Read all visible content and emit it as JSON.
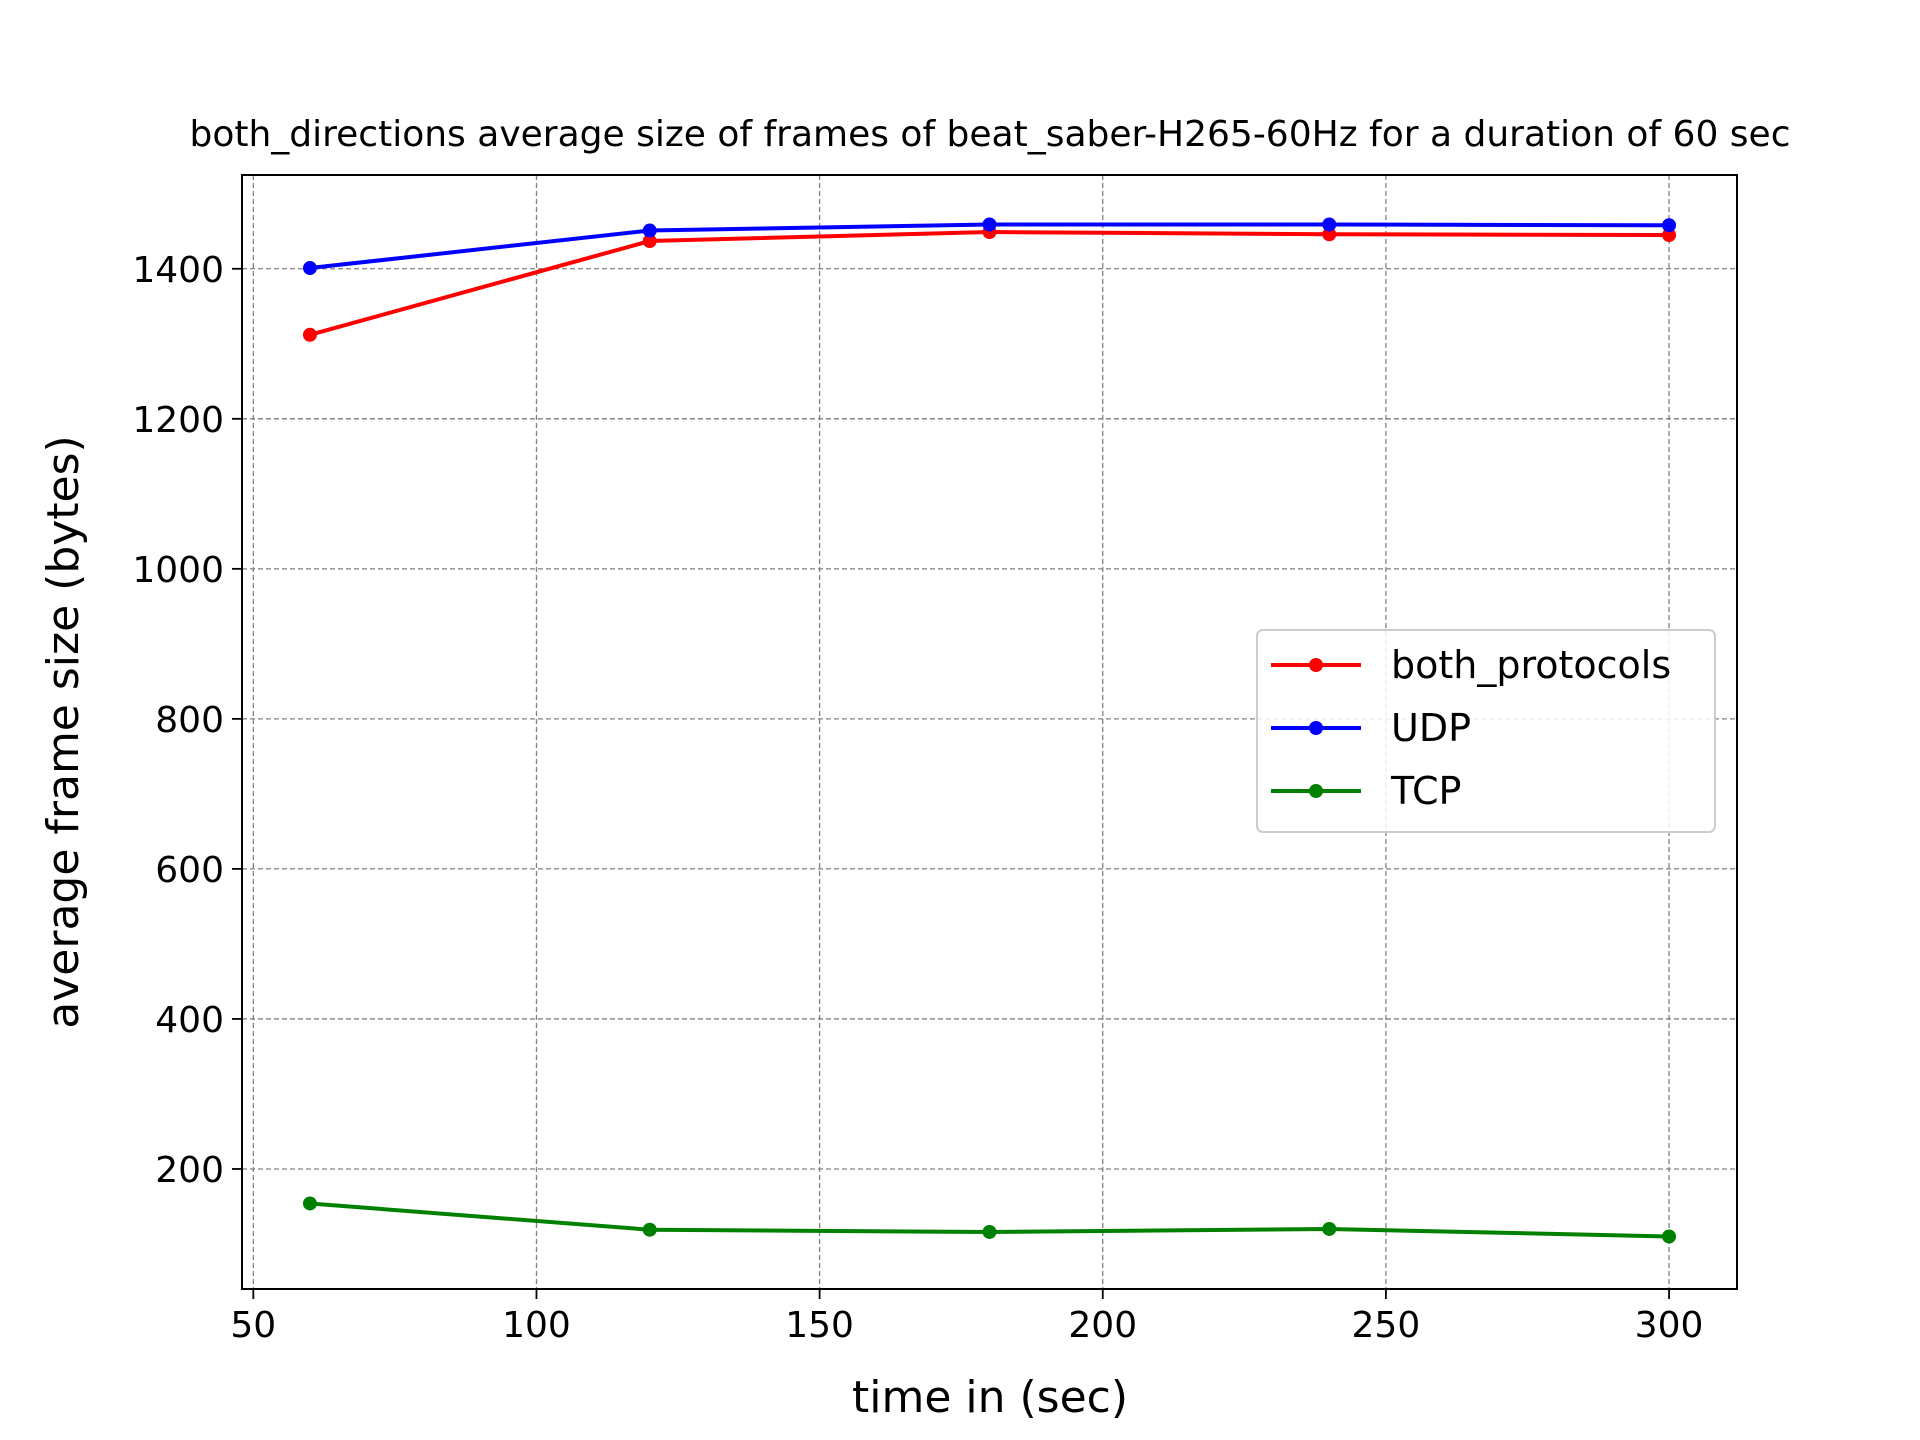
{
  "chart_data": {
    "type": "line",
    "title": "both_directions average size of frames of beat_saber-H265-60Hz for a duration of 60 sec",
    "xlabel": "time in (sec)",
    "ylabel": "average frame size (bytes)",
    "xlim": [
      48,
      312
    ],
    "ylim": [
      40,
      1525
    ],
    "xticks": [
      50,
      100,
      150,
      200,
      250,
      300
    ],
    "yticks": [
      200,
      400,
      600,
      800,
      1000,
      1200,
      1400
    ],
    "grid": true,
    "legend_position": "center-right",
    "x": [
      60,
      120,
      180,
      240,
      300
    ],
    "series": [
      {
        "name": "both_protocols",
        "color": "#ff0000",
        "values": [
          1312,
          1437,
          1449,
          1446,
          1445
        ]
      },
      {
        "name": "UDP",
        "color": "#0000ff",
        "values": [
          1401,
          1451,
          1459,
          1459,
          1458
        ]
      },
      {
        "name": "TCP",
        "color": "#008000",
        "values": [
          154,
          119,
          116,
          120,
          110
        ]
      }
    ]
  }
}
